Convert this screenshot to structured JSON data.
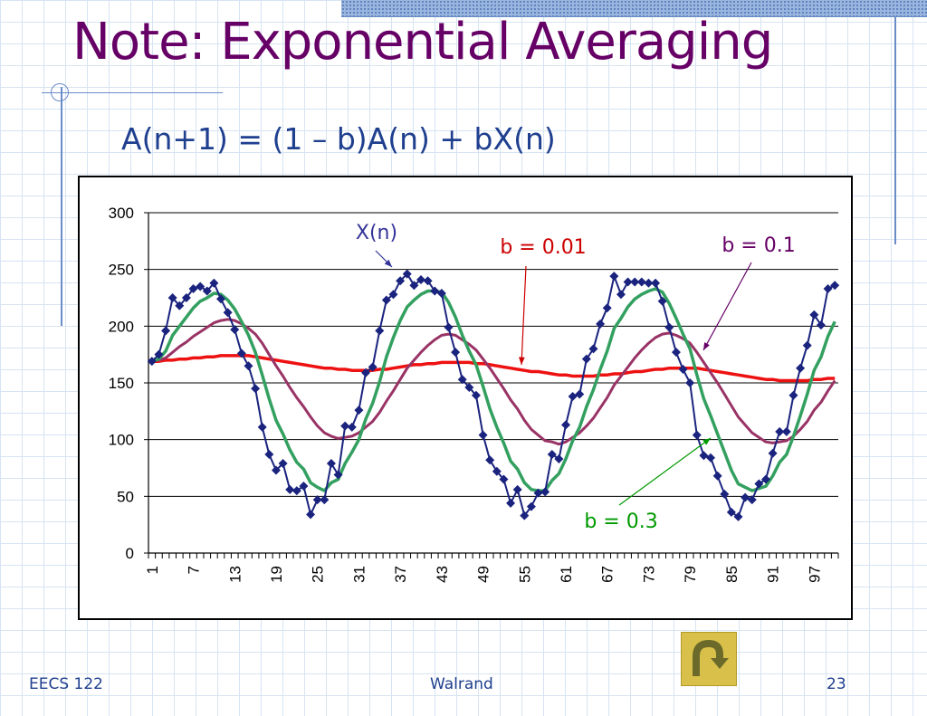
{
  "slide": {
    "title": "Note: Exponential Averaging",
    "formula": "A(n+1) = (1 – b)A(n) + bX(n)",
    "footer_left": "EECS 122",
    "footer_center": "Walrand",
    "page_number": "23",
    "back_icon": "u-turn-arrow-icon"
  },
  "chart_data": {
    "type": "line",
    "title": "",
    "xlabel": "",
    "ylabel": "",
    "ylim": [
      0,
      300
    ],
    "yticks": [
      0,
      50,
      100,
      150,
      200,
      250,
      300
    ],
    "xlim": [
      1,
      100
    ],
    "xtick_labels": [
      "1",
      "7",
      "13",
      "19",
      "25",
      "31",
      "37",
      "43",
      "49",
      "55",
      "61",
      "67",
      "73",
      "79",
      "85",
      "91",
      "97"
    ],
    "grid": "horizontal",
    "legend": "none",
    "colors": {
      "xn": "#1a237e",
      "b001": "#ee1111",
      "b01": "#993366",
      "b03": "#33a060",
      "annotation_b001": "#cc0000",
      "annotation_b01": "#660066",
      "annotation_b03": "#009900",
      "annotation_xn": "#333399"
    },
    "annotations": [
      {
        "text": "X(n)",
        "series": "xn"
      },
      {
        "text": "b = 0.01",
        "series": "b001"
      },
      {
        "text": "b = 0.1",
        "series": "b01"
      },
      {
        "text": "b = 0.3",
        "series": "b03"
      }
    ],
    "series": [
      {
        "key": "xn",
        "marker": "diamond",
        "x": [
          1,
          2,
          3,
          4,
          5,
          6,
          7,
          8,
          9,
          10,
          11,
          12,
          13,
          14,
          15,
          16,
          17,
          18,
          19,
          20,
          21,
          22,
          23,
          24,
          25,
          26,
          27,
          28,
          29,
          30,
          31,
          32,
          33,
          34,
          35,
          36,
          37,
          38,
          39,
          40,
          41,
          42,
          43,
          44,
          45,
          46,
          47,
          48,
          49,
          50,
          51,
          52,
          53,
          54,
          55,
          56,
          57,
          58,
          59,
          60,
          61,
          62,
          63,
          64,
          65,
          66,
          67,
          68,
          69,
          70,
          71,
          72,
          73,
          74,
          75,
          76,
          77,
          78,
          79,
          80,
          81,
          82,
          83,
          84,
          85,
          86,
          87,
          88,
          89,
          90,
          91,
          92,
          93,
          94,
          95,
          96,
          97,
          98,
          99,
          100
        ],
        "values": [
          169,
          175,
          196,
          225,
          218,
          225,
          233,
          235,
          231,
          238,
          224,
          212,
          197,
          176,
          165,
          145,
          111,
          87,
          73,
          79,
          56,
          55,
          59,
          34,
          47,
          47,
          79,
          69,
          112,
          111,
          126,
          159,
          164,
          196,
          223,
          228,
          240,
          246,
          236,
          241,
          240,
          231,
          229,
          199,
          177,
          153,
          146,
          139,
          104,
          82,
          72,
          65,
          44,
          56,
          33,
          41,
          53,
          54,
          87,
          83,
          113,
          138,
          140,
          171,
          180,
          202,
          216,
          244,
          228,
          239,
          239,
          239,
          238,
          238,
          222,
          199,
          177,
          162,
          150,
          104,
          86,
          84,
          68,
          52,
          36,
          32,
          49,
          47,
          61,
          65,
          88,
          107,
          107,
          139,
          163,
          183,
          210,
          201,
          233,
          236
        ]
      },
      {
        "key": "b03",
        "marker": "none",
        "x": [
          1,
          2,
          3,
          4,
          5,
          6,
          7,
          8,
          9,
          10,
          11,
          12,
          13,
          14,
          15,
          16,
          17,
          18,
          19,
          20,
          21,
          22,
          23,
          24,
          25,
          26,
          27,
          28,
          29,
          30,
          31,
          32,
          33,
          34,
          35,
          36,
          37,
          38,
          39,
          40,
          41,
          42,
          43,
          44,
          45,
          46,
          47,
          48,
          49,
          50,
          51,
          52,
          53,
          54,
          55,
          56,
          57,
          58,
          59,
          60,
          61,
          62,
          63,
          64,
          65,
          66,
          67,
          68,
          69,
          70,
          71,
          72,
          73,
          74,
          75,
          76,
          77,
          78,
          79,
          80,
          81,
          82,
          83,
          84,
          85,
          86,
          87,
          88,
          89,
          90,
          91,
          92,
          93,
          94,
          95,
          96,
          97,
          98,
          99,
          100
        ],
        "values": [
          169,
          171,
          178,
          192,
          200,
          208,
          216,
          222,
          225,
          229,
          228,
          223,
          215,
          204,
          192,
          177,
          157,
          136,
          117,
          105,
          91,
          80,
          74,
          62,
          58,
          55,
          62,
          65,
          79,
          89,
          100,
          118,
          132,
          151,
          173,
          190,
          205,
          217,
          223,
          228,
          231,
          231,
          230,
          221,
          208,
          192,
          178,
          166,
          147,
          127,
          111,
          97,
          81,
          74,
          62,
          56,
          55,
          55,
          64,
          70,
          83,
          99,
          111,
          129,
          144,
          162,
          178,
          198,
          207,
          217,
          224,
          228,
          231,
          233,
          230,
          220,
          207,
          193,
          180,
          157,
          136,
          121,
          105,
          89,
          73,
          61,
          58,
          55,
          57,
          59,
          68,
          80,
          87,
          103,
          121,
          140,
          161,
          173,
          191,
          204
        ]
      },
      {
        "key": "b01",
        "marker": "none",
        "x": [
          1,
          2,
          3,
          4,
          5,
          6,
          7,
          8,
          9,
          10,
          11,
          12,
          13,
          14,
          15,
          16,
          17,
          18,
          19,
          20,
          21,
          22,
          23,
          24,
          25,
          26,
          27,
          28,
          29,
          30,
          31,
          32,
          33,
          34,
          35,
          36,
          37,
          38,
          39,
          40,
          41,
          42,
          43,
          44,
          45,
          46,
          47,
          48,
          49,
          50,
          51,
          52,
          53,
          54,
          55,
          56,
          57,
          58,
          59,
          60,
          61,
          62,
          63,
          64,
          65,
          66,
          67,
          68,
          69,
          70,
          71,
          72,
          73,
          74,
          75,
          76,
          77,
          78,
          79,
          80,
          81,
          82,
          83,
          84,
          85,
          86,
          87,
          88,
          89,
          90,
          91,
          92,
          93,
          94,
          95,
          96,
          97,
          98,
          99,
          100
        ],
        "values": [
          169,
          170,
          172,
          177,
          182,
          186,
          191,
          195,
          199,
          203,
          205,
          206,
          205,
          202,
          198,
          193,
          185,
          175,
          165,
          156,
          146,
          137,
          129,
          120,
          112,
          106,
          103,
          101,
          102,
          103,
          106,
          111,
          116,
          124,
          134,
          143,
          153,
          163,
          170,
          177,
          183,
          188,
          192,
          193,
          192,
          188,
          184,
          179,
          171,
          163,
          154,
          145,
          135,
          127,
          117,
          109,
          104,
          99,
          98,
          96,
          98,
          102,
          106,
          112,
          119,
          128,
          137,
          148,
          156,
          164,
          172,
          179,
          185,
          190,
          193,
          194,
          192,
          189,
          185,
          177,
          168,
          159,
          150,
          140,
          130,
          120,
          113,
          106,
          102,
          98,
          97,
          98,
          99,
          103,
          109,
          116,
          126,
          133,
          143,
          152
        ]
      },
      {
        "key": "b001",
        "marker": "none",
        "x": [
          1,
          2,
          3,
          4,
          5,
          6,
          7,
          8,
          9,
          10,
          11,
          12,
          13,
          14,
          15,
          16,
          17,
          18,
          19,
          20,
          21,
          22,
          23,
          24,
          25,
          26,
          27,
          28,
          29,
          30,
          31,
          32,
          33,
          34,
          35,
          36,
          37,
          38,
          39,
          40,
          41,
          42,
          43,
          44,
          45,
          46,
          47,
          48,
          49,
          50,
          51,
          52,
          53,
          54,
          55,
          56,
          57,
          58,
          59,
          60,
          61,
          62,
          63,
          64,
          65,
          66,
          67,
          68,
          69,
          70,
          71,
          72,
          73,
          74,
          75,
          76,
          77,
          78,
          79,
          80,
          81,
          82,
          83,
          84,
          85,
          86,
          87,
          88,
          89,
          90,
          91,
          92,
          93,
          94,
          95,
          96,
          97,
          98,
          99,
          100
        ],
        "values": [
          169,
          169,
          170,
          170,
          171,
          171,
          172,
          172,
          173,
          173,
          174,
          174,
          174,
          174,
          174,
          173,
          172,
          171,
          170,
          169,
          168,
          167,
          166,
          165,
          164,
          163,
          163,
          162,
          162,
          161,
          161,
          161,
          161,
          162,
          162,
          163,
          164,
          165,
          166,
          166,
          167,
          167,
          168,
          168,
          168,
          168,
          168,
          167,
          167,
          166,
          165,
          164,
          163,
          162,
          161,
          160,
          160,
          159,
          158,
          157,
          157,
          156,
          156,
          156,
          156,
          157,
          157,
          158,
          158,
          159,
          160,
          160,
          161,
          162,
          162,
          163,
          163,
          163,
          163,
          163,
          162,
          161,
          160,
          159,
          158,
          157,
          156,
          155,
          154,
          153,
          153,
          152,
          152,
          152,
          152,
          152,
          153,
          153,
          154,
          154
        ]
      }
    ]
  }
}
